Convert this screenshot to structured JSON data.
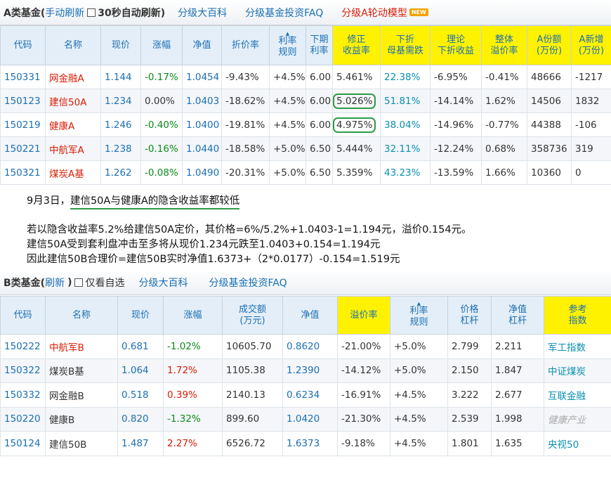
{
  "a_section": {
    "title": "A类基金(",
    "manual_refresh": "手动刷新",
    "auto_refresh": "30秒自动刷新)",
    "encyclopedia": "分级大百科",
    "faq": "分级基金投资FAQ",
    "rotation": "分级A轮动模型",
    "new_badge": "NEW",
    "headers": [
      "代码",
      "名称",
      "现价",
      "涨幅",
      "净值",
      "折价率",
      "利率\n规则",
      "下期\n利率",
      "修正\n收益率",
      "下折\n母基需跌",
      "理论\n下折收益",
      "整体\n溢价率",
      "A份额\n(万份)",
      "A新增\n(万份)"
    ],
    "rows": [
      [
        "150331",
        "网金融A",
        "1.144",
        "-0.17%",
        "1.0454",
        "-9.43%",
        "+4.5%",
        "6.00",
        "5.461%",
        "22.38%",
        "-6.95%",
        "-0.41%",
        "48666",
        "-1217"
      ],
      [
        "150123",
        "建信50A",
        "1.234",
        "0.00%",
        "1.0403",
        "-18.62%",
        "+4.5%",
        "6.00",
        "5.026%",
        "51.81%",
        "-14.14%",
        "1.62%",
        "14506",
        "1832"
      ],
      [
        "150219",
        "健康A",
        "1.246",
        "-0.40%",
        "1.0400",
        "-19.81%",
        "+4.5%",
        "6.00",
        "4.975%",
        "38.04%",
        "-14.96%",
        "-0.77%",
        "44388",
        "-106"
      ],
      [
        "150221",
        "中航军A",
        "1.238",
        "-0.16%",
        "1.0440",
        "-18.58%",
        "+5.0%",
        "6.50",
        "5.444%",
        "32.11%",
        "-12.24%",
        "0.68%",
        "358736",
        "319"
      ],
      [
        "150321",
        "煤炭A基",
        "1.262",
        "-0.08%",
        "1.0490",
        "-20.31%",
        "+5.0%",
        "6.50",
        "5.359%",
        "43.23%",
        "-13.59%",
        "1.66%",
        "10360",
        "0"
      ]
    ]
  },
  "note": {
    "line1_prefix": "9月3日，",
    "line1_underlined": "建信50A与健康A的隐含收益率都较低",
    "line2": "若以隐含收益率5.2%给建信50A定价，其价格=6%/5.2%+1.0403-1=1.194元，溢价0.154元。",
    "line3": "建信50A受到套利盘冲击至多将从现价1.234元跌至1.0403+0.154=1.194元",
    "line4": "因此建信50B合理价=建信50B实时净值1.6373+（2*0.0177）-0.154=1.519元"
  },
  "b_section": {
    "title": "B类基金(",
    "refresh": "刷新",
    "paren_close": ")",
    "watchlist": "仅看自选",
    "encyclopedia": "分级大百科",
    "faq": "分级基金投资FAQ",
    "headers": [
      "代码",
      "名称",
      "现价",
      "涨幅",
      "成交额\n(万元)",
      "净值",
      "溢价率",
      "利率\n规则",
      "价格\n杠杆",
      "净值\n杠杆",
      "参考\n指数"
    ],
    "rows": [
      [
        "150222",
        "中航军B",
        "0.681",
        "-1.02%",
        "10605.70",
        "0.8620",
        "-21.00%",
        "+5.0%",
        "2.799",
        "2.211",
        "军工指数"
      ],
      [
        "150322",
        "煤炭B基",
        "1.064",
        "1.72%",
        "1105.38",
        "1.2390",
        "-14.12%",
        "+5.0%",
        "2.150",
        "1.847",
        "中证煤炭"
      ],
      [
        "150332",
        "网金融B",
        "0.518",
        "0.39%",
        "2140.13",
        "0.6234",
        "-16.91%",
        "+4.5%",
        "3.222",
        "2.677",
        "互联金融"
      ],
      [
        "150220",
        "健康B",
        "0.820",
        "-1.32%",
        "899.60",
        "1.0420",
        "-21.30%",
        "+4.5%",
        "2.539",
        "1.998",
        "健康产业"
      ],
      [
        "150124",
        "建信50B",
        "1.487",
        "2.27%",
        "6526.72",
        "1.6373",
        "-9.18%",
        "+4.5%",
        "1.801",
        "1.635",
        "央视50"
      ]
    ]
  },
  "colors": {
    "link": "#1a6fb4",
    "red": "#d81e06",
    "green": "#0a8a1a",
    "header_bg": "#e4eef8",
    "highlight": "#fff200",
    "circle": "#2e9a4a"
  }
}
